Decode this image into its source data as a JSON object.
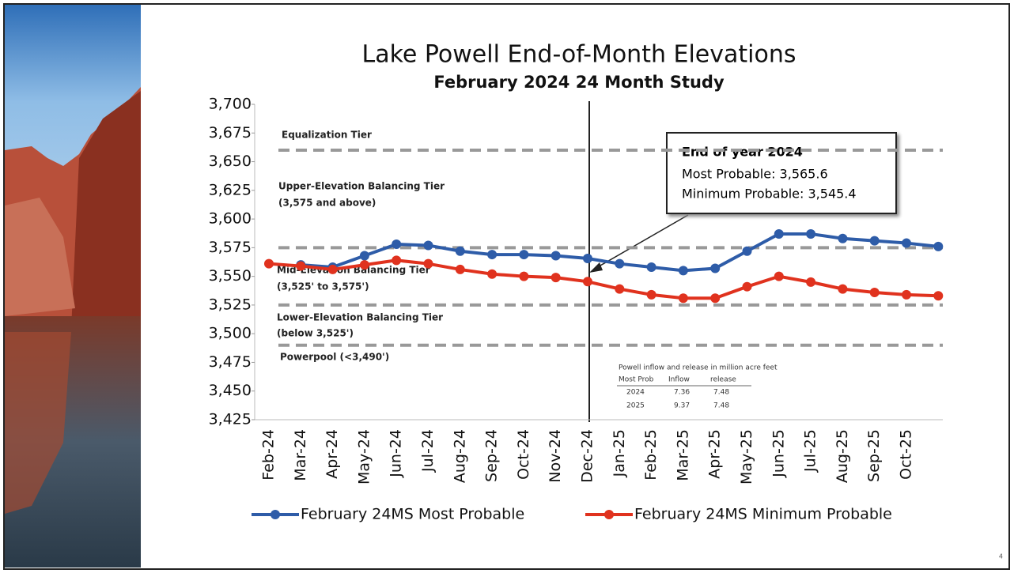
{
  "chart_data": {
    "type": "line",
    "title": "Lake Powell End-of-Month Elevations",
    "subtitle": "February 2024 24 Month Study",
    "categories": [
      "Feb-24",
      "Mar-24",
      "Apr-24",
      "May-24",
      "Jun-24",
      "Jul-24",
      "Aug-24",
      "Sep-24",
      "Oct-24",
      "Nov-24",
      "Dec-24",
      "Jan-25",
      "Feb-25",
      "Mar-25",
      "Apr-25",
      "May-25",
      "Jun-25",
      "Jul-25",
      "Aug-25",
      "Sep-25",
      "Oct-25",
      null
    ],
    "series": [
      {
        "name": "February 24MS Most Probable",
        "color": "#2e5ca8",
        "values": [
          null,
          3560,
          3558,
          3568,
          3578,
          3577,
          3572,
          3569,
          3569,
          3568,
          3565.6,
          3561,
          3558,
          3555,
          3557,
          3572,
          3587,
          3587,
          3583,
          3581,
          3579,
          3576
        ]
      },
      {
        "name": "February 24MS Minimum Probable",
        "color": "#e0321e",
        "values": [
          3561,
          3559,
          3556,
          3560,
          3564,
          3561,
          3556,
          3552,
          3550,
          3549,
          3545.4,
          3539,
          3534,
          3531,
          3531,
          3541,
          3550,
          3545,
          3539,
          3536,
          3534,
          3533
        ]
      }
    ],
    "ylim": [
      3425,
      3700
    ],
    "yticks": [
      {
        "value": 3425,
        "label": "3,425"
      },
      {
        "value": 3450,
        "label": "3,450"
      },
      {
        "value": 3475,
        "label": "3,475"
      },
      {
        "value": 3500,
        "label": "3,500"
      },
      {
        "value": 3525,
        "label": "3,525"
      },
      {
        "value": 3550,
        "label": "3,550"
      },
      {
        "value": 3575,
        "label": "3,575"
      },
      {
        "value": 3600,
        "label": "3,600"
      },
      {
        "value": 3625,
        "label": "3,625"
      },
      {
        "value": 3650,
        "label": "3,650"
      },
      {
        "value": 3675,
        "label": "3,675"
      },
      {
        "value": 3700,
        "label": "3,700"
      }
    ],
    "reference_lines": [
      3660,
      3575,
      3525,
      3490
    ],
    "annotations": [
      "Equalization Tier",
      "Upper-Elevation Balancing Tier",
      "(3,575 and above)",
      "Mid-Elevation Balancing Tier",
      "(3,525' to 3,575')",
      "Lower-Elevation Balancing Tier",
      "(below 3,525')",
      "Powerpool (<3,490')"
    ],
    "callout": [
      "End of year 2024",
      "Most Probable: 3,565.6",
      "Minimum Probable: 3,545.4"
    ],
    "table": {
      "title": "Powell inflow and release in million acre feet",
      "header": [
        "Most Prob",
        "Inflow",
        "release"
      ],
      "rows": [
        [
          "2024",
          "7.36",
          "7.48"
        ],
        [
          "2025",
          "9.37",
          "7.48"
        ]
      ]
    },
    "legend": "bottom"
  },
  "page_number": "4"
}
